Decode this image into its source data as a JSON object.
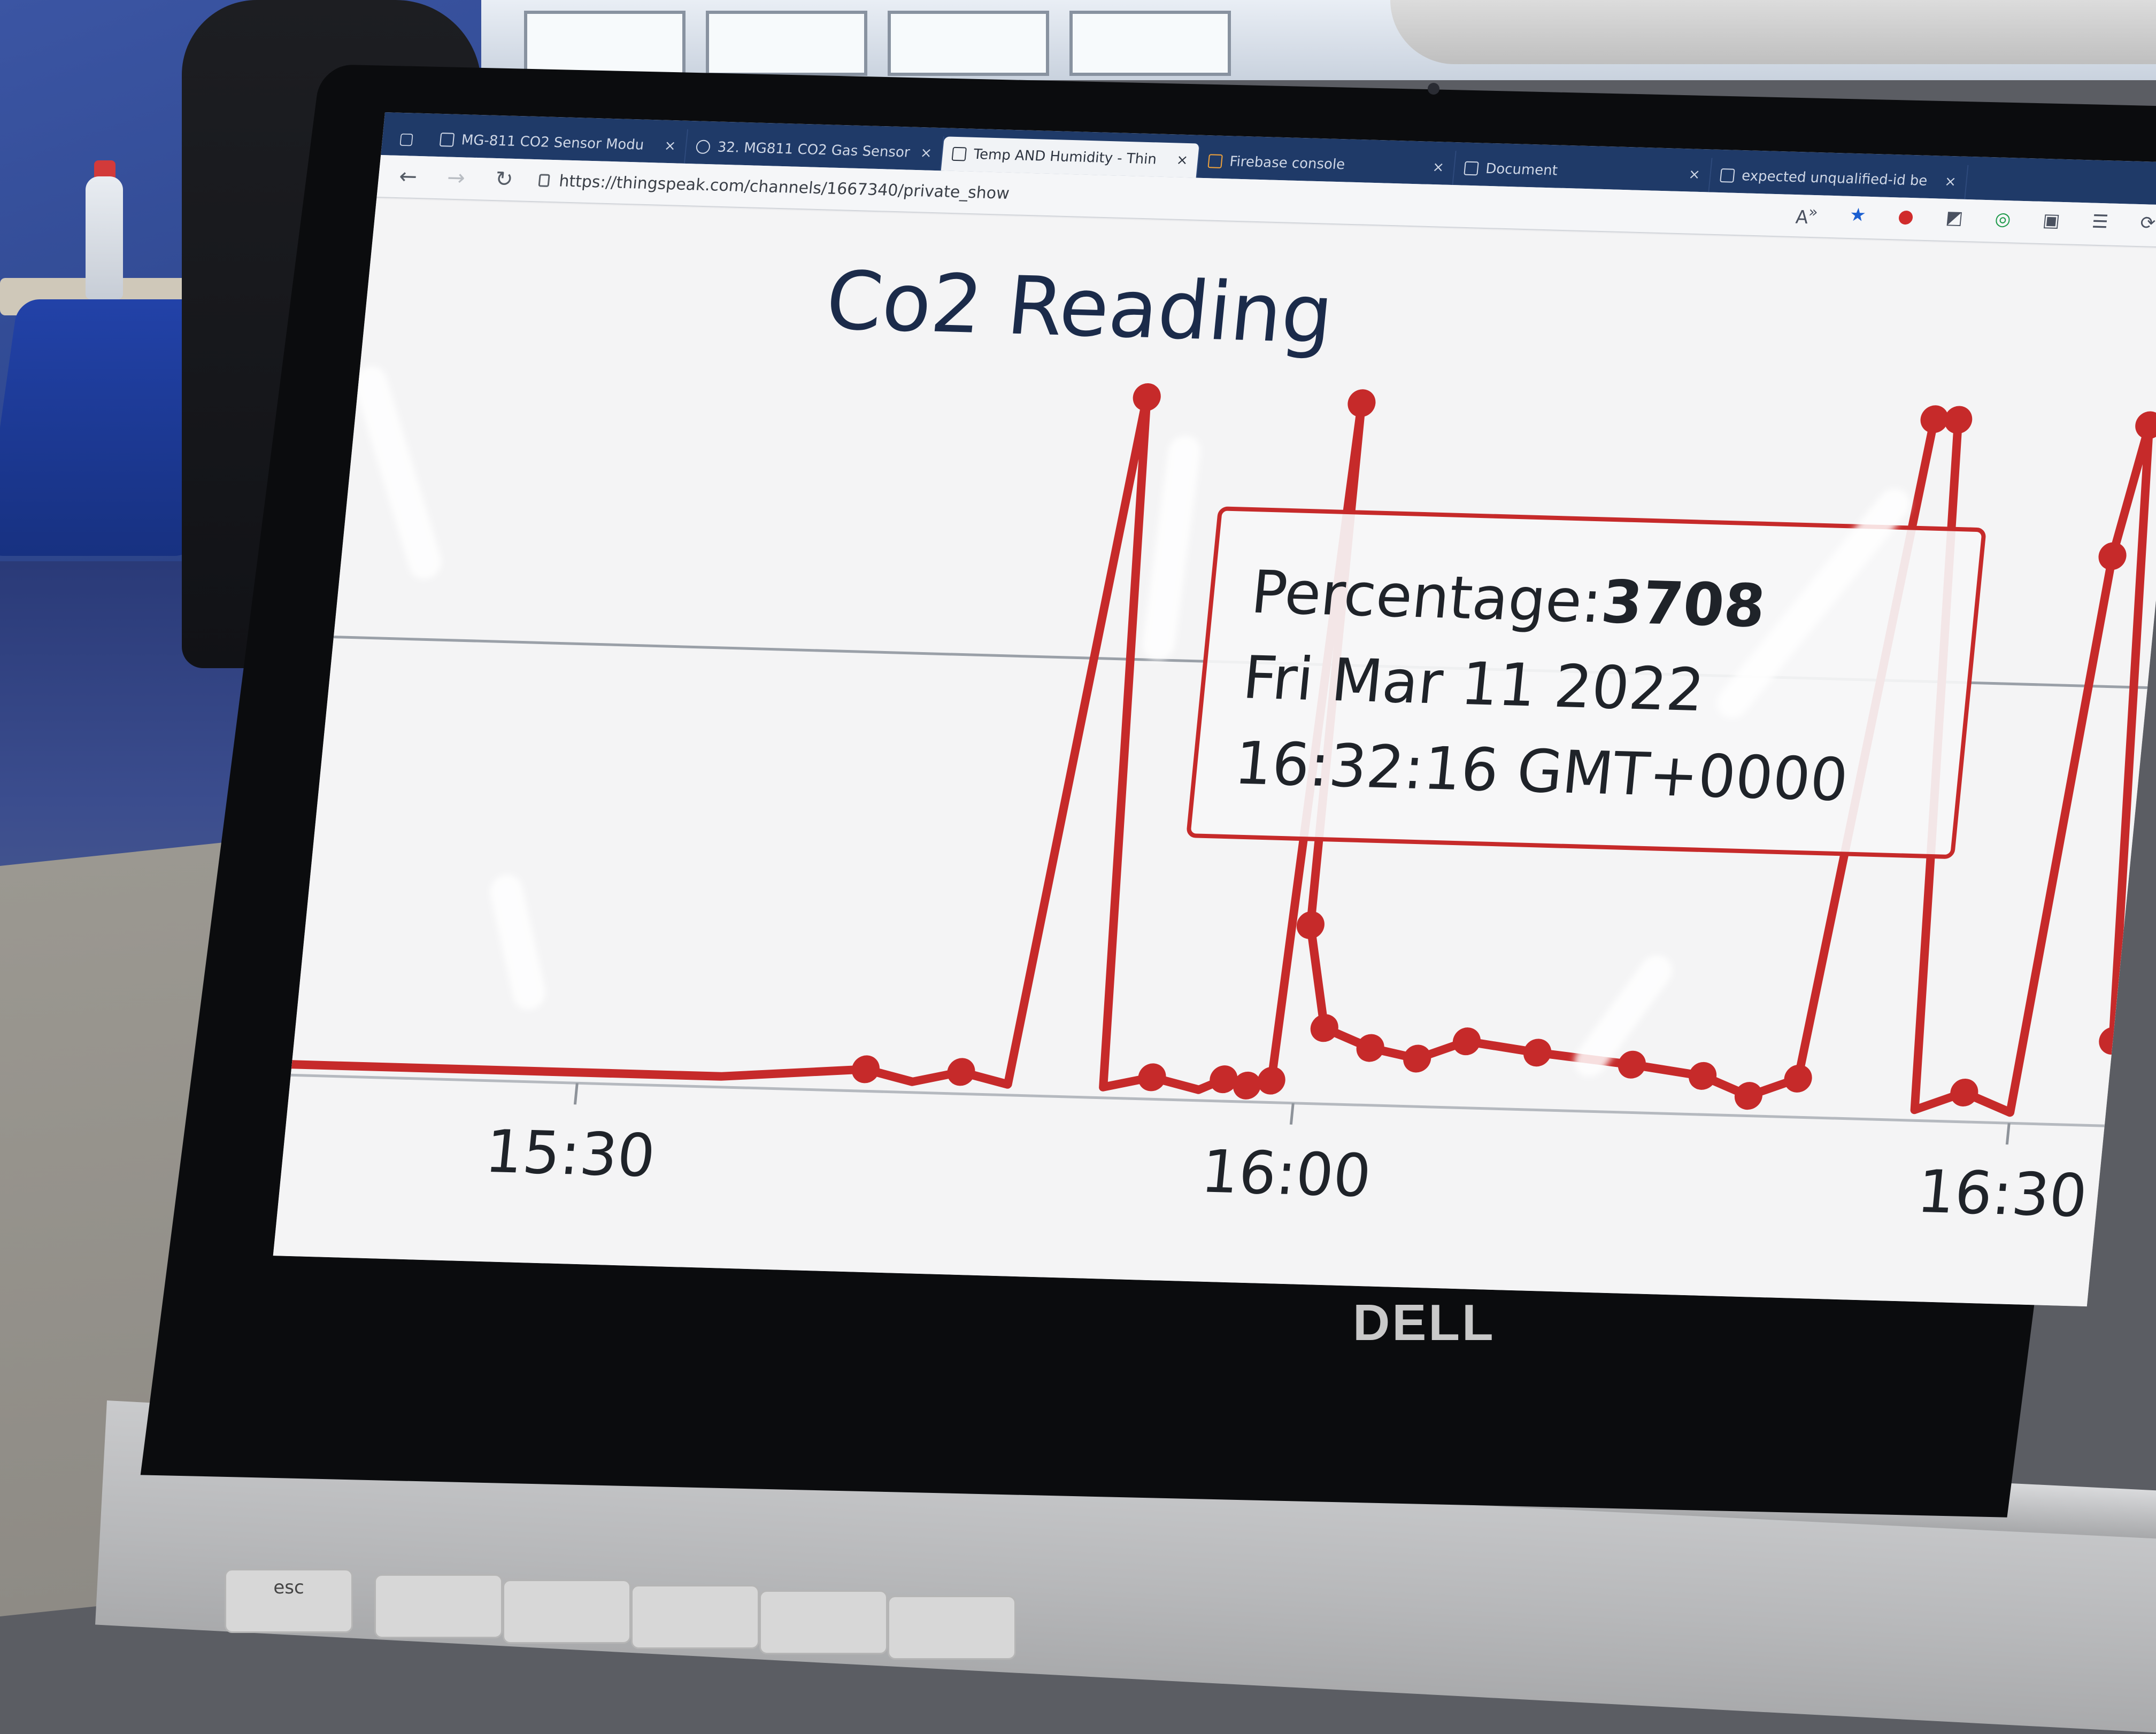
{
  "browser": {
    "tabs": [
      {
        "label": "MG-811 CO2 Sensor Modu",
        "icon": "page-icon",
        "active": false
      },
      {
        "label": "32. MG811 CO2 Gas Sensor",
        "icon": "globe-icon",
        "active": false
      },
      {
        "label": "Temp AND Humidity - Thin",
        "icon": "chat-icon",
        "active": true
      },
      {
        "label": "Firebase console",
        "icon": "firebase-icon",
        "active": false
      },
      {
        "label": "Document",
        "icon": "page-icon",
        "active": false
      },
      {
        "label": "expected unqualified-id be",
        "icon": "page-icon",
        "active": false
      }
    ],
    "close_glyph": "×",
    "url": "https://thingspeak.com/channels/1667340/private_show",
    "accent": "#1f3a68"
  },
  "chart_data": {
    "type": "line",
    "title": "Co2 Reading",
    "x_ticks": [
      "15:30",
      "16:00",
      "16:30"
    ],
    "series": [
      {
        "color": "#c62a2a",
        "points": [
          [
            "15:18",
            0
          ],
          [
            "15:36",
            0
          ],
          [
            "15:42",
            60
          ],
          [
            "15:44",
            0
          ],
          [
            "15:46",
            60
          ],
          [
            "15:48",
            0
          ],
          [
            "15:51",
            3708
          ],
          [
            "15:52",
            0
          ],
          [
            "15:54",
            60
          ],
          [
            "15:56",
            0
          ],
          [
            "15:57",
            60
          ],
          [
            "15:58",
            30
          ],
          [
            "15:59",
            60
          ],
          [
            "16:00",
            3708
          ],
          [
            "16:00",
            900
          ],
          [
            "16:01",
            350
          ],
          [
            "16:03",
            250
          ],
          [
            "16:05",
            200
          ],
          [
            "16:07",
            300
          ],
          [
            "16:10",
            250
          ],
          [
            "16:14",
            200
          ],
          [
            "16:17",
            150
          ],
          [
            "16:19",
            50
          ],
          [
            "16:21",
            150
          ],
          [
            "16:24",
            3708
          ],
          [
            "16:25",
            3708
          ],
          [
            "16:26",
            0
          ],
          [
            "16:28",
            100
          ],
          [
            "16:30",
            0
          ],
          [
            "16:32",
            3000
          ],
          [
            "16:33",
            3708
          ],
          [
            "16:34",
            400
          ]
        ]
      }
    ],
    "tooltip": {
      "label": "Percentage:",
      "value": "3708",
      "date": "Fri Mar 11 2022",
      "time": "16:32:16 GMT+0000"
    }
  },
  "laptop": {
    "brand": "DELL",
    "keys": [
      "esc",
      "",
      "",
      "",
      "",
      ""
    ]
  }
}
